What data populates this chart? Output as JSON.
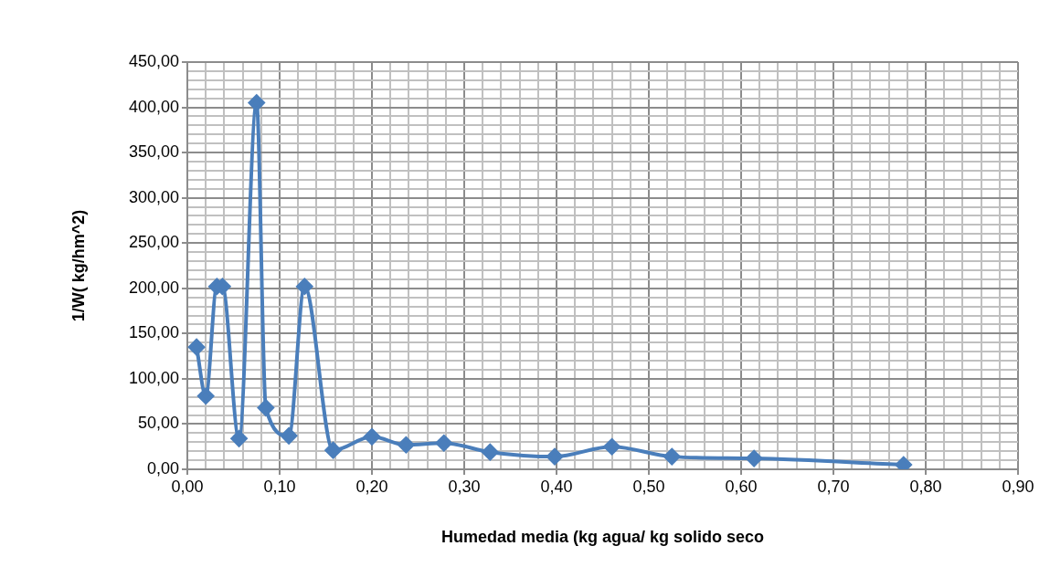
{
  "chart_data": {
    "type": "line",
    "xlabel": "Humedad media (kg agua/ kg solido seco",
    "ylabel": "1/W( kg/hm^2)",
    "x": [
      0.01,
      0.02,
      0.032,
      0.038,
      0.056,
      0.075,
      0.085,
      0.11,
      0.127,
      0.158,
      0.2,
      0.237,
      0.278,
      0.328,
      0.398,
      0.46,
      0.525,
      0.614,
      0.776
    ],
    "series": [
      {
        "color": "#4a7ebb",
        "values": [
          135,
          81,
          202,
          202,
          34,
          405,
          68,
          37,
          202,
          21,
          36,
          27,
          29,
          19,
          14,
          25,
          14,
          12,
          5
        ]
      }
    ],
    "marker": "diamond",
    "line_style": "solid",
    "grid": true,
    "legend": false,
    "xlim": [
      0,
      0.9
    ],
    "ylim": [
      0,
      450
    ],
    "xticks": [
      {
        "value": 0,
        "label": "0,00"
      },
      {
        "value": 0.02,
        "label": null
      },
      {
        "value": 0.04,
        "label": null
      },
      {
        "value": 0.06,
        "label": null
      },
      {
        "value": 0.08,
        "label": null
      },
      {
        "value": 0.1,
        "label": "0,10"
      },
      {
        "value": 0.12,
        "label": null
      },
      {
        "value": 0.14,
        "label": null
      },
      {
        "value": 0.16,
        "label": null
      },
      {
        "value": 0.18,
        "label": null
      },
      {
        "value": 0.2,
        "label": "0,20"
      },
      {
        "value": 0.22,
        "label": null
      },
      {
        "value": 0.24,
        "label": null
      },
      {
        "value": 0.26,
        "label": null
      },
      {
        "value": 0.28,
        "label": null
      },
      {
        "value": 0.3,
        "label": "0,30"
      },
      {
        "value": 0.32,
        "label": null
      },
      {
        "value": 0.34,
        "label": null
      },
      {
        "value": 0.36,
        "label": null
      },
      {
        "value": 0.38,
        "label": null
      },
      {
        "value": 0.4,
        "label": "0,40"
      },
      {
        "value": 0.42,
        "label": null
      },
      {
        "value": 0.44,
        "label": null
      },
      {
        "value": 0.46,
        "label": null
      },
      {
        "value": 0.48,
        "label": null
      },
      {
        "value": 0.5,
        "label": "0,50"
      },
      {
        "value": 0.52,
        "label": null
      },
      {
        "value": 0.54,
        "label": null
      },
      {
        "value": 0.56,
        "label": null
      },
      {
        "value": 0.58,
        "label": null
      },
      {
        "value": 0.6,
        "label": "0,60"
      },
      {
        "value": 0.62,
        "label": null
      },
      {
        "value": 0.64,
        "label": null
      },
      {
        "value": 0.66,
        "label": null
      },
      {
        "value": 0.68,
        "label": null
      },
      {
        "value": 0.7,
        "label": "0,70"
      },
      {
        "value": 0.72,
        "label": null
      },
      {
        "value": 0.74,
        "label": null
      },
      {
        "value": 0.76,
        "label": null
      },
      {
        "value": 0.78,
        "label": null
      },
      {
        "value": 0.8,
        "label": "0,80"
      },
      {
        "value": 0.82,
        "label": null
      },
      {
        "value": 0.84,
        "label": null
      },
      {
        "value": 0.86,
        "label": null
      },
      {
        "value": 0.88,
        "label": null
      },
      {
        "value": 0.9,
        "label": "0,90"
      }
    ],
    "yticks": [
      {
        "value": 0,
        "label": "0,00"
      },
      {
        "value": 10,
        "label": null
      },
      {
        "value": 20,
        "label": null
      },
      {
        "value": 30,
        "label": null
      },
      {
        "value": 40,
        "label": null
      },
      {
        "value": 50,
        "label": "50,00"
      },
      {
        "value": 60,
        "label": null
      },
      {
        "value": 70,
        "label": null
      },
      {
        "value": 80,
        "label": null
      },
      {
        "value": 90,
        "label": null
      },
      {
        "value": 100,
        "label": "100,00"
      },
      {
        "value": 110,
        "label": null
      },
      {
        "value": 120,
        "label": null
      },
      {
        "value": 130,
        "label": null
      },
      {
        "value": 140,
        "label": null
      },
      {
        "value": 150,
        "label": "150,00"
      },
      {
        "value": 160,
        "label": null
      },
      {
        "value": 170,
        "label": null
      },
      {
        "value": 180,
        "label": null
      },
      {
        "value": 190,
        "label": null
      },
      {
        "value": 200,
        "label": "200,00"
      },
      {
        "value": 210,
        "label": null
      },
      {
        "value": 220,
        "label": null
      },
      {
        "value": 230,
        "label": null
      },
      {
        "value": 240,
        "label": null
      },
      {
        "value": 250,
        "label": "250,00"
      },
      {
        "value": 260,
        "label": null
      },
      {
        "value": 270,
        "label": null
      },
      {
        "value": 280,
        "label": null
      },
      {
        "value": 290,
        "label": null
      },
      {
        "value": 300,
        "label": "300,00"
      },
      {
        "value": 310,
        "label": null
      },
      {
        "value": 320,
        "label": null
      },
      {
        "value": 330,
        "label": null
      },
      {
        "value": 340,
        "label": null
      },
      {
        "value": 350,
        "label": "350,00"
      },
      {
        "value": 360,
        "label": null
      },
      {
        "value": 370,
        "label": null
      },
      {
        "value": 380,
        "label": null
      },
      {
        "value": 390,
        "label": null
      },
      {
        "value": 400,
        "label": "400,00"
      },
      {
        "value": 410,
        "label": null
      },
      {
        "value": 420,
        "label": null
      },
      {
        "value": 430,
        "label": null
      },
      {
        "value": 440,
        "label": null
      },
      {
        "value": 450,
        "label": "450,00"
      }
    ]
  }
}
